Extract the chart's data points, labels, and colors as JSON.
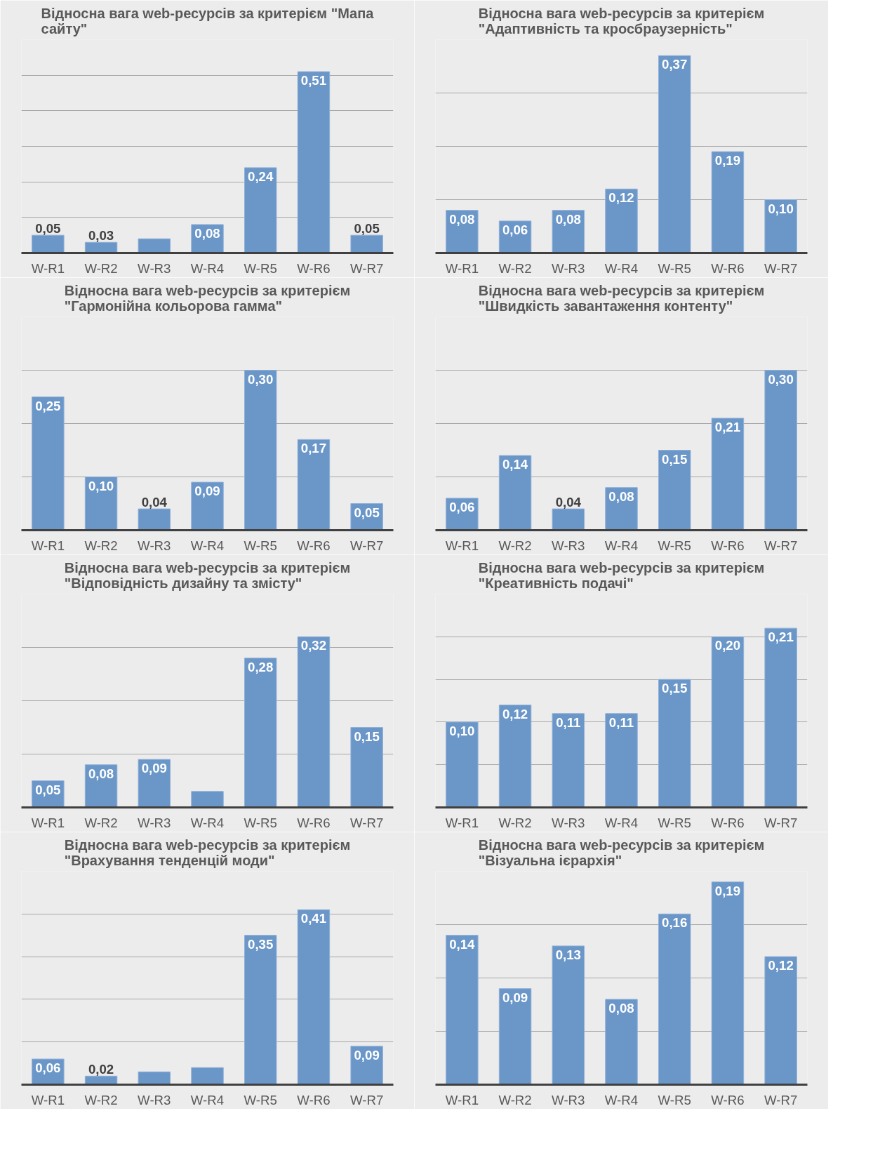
{
  "chart_data": [
    {
      "type": "bar",
      "title": "Відносна вага web-ресурсів за критерієм \"Мапа сайту\"",
      "categories": [
        "W-R1",
        "W-R2",
        "W-R3",
        "W-R4",
        "W-R5",
        "W-R6",
        "W-R7"
      ],
      "values": [
        0.05,
        0.03,
        0.04,
        0.08,
        0.24,
        0.51,
        0.05
      ],
      "value_labels": [
        "0,05",
        "0,03",
        null,
        "0,08",
        "0,24",
        "0,51",
        "0,05"
      ],
      "color": "#6a96c8",
      "ylim": [
        0,
        0.6
      ],
      "yticks": [
        {
          "value": 0.1,
          "label": null
        },
        {
          "value": 0.2,
          "label": null
        },
        {
          "value": 0.3,
          "label": null
        },
        {
          "value": 0.4,
          "label": null
        },
        {
          "value": 0.5,
          "label": null
        },
        {
          "value": 0.6,
          "label": null
        }
      ],
      "grid": "y",
      "tick_labels": "x"
    },
    {
      "type": "bar",
      "title": "Відносна вага web-ресурсів за критерієм \"Адаптивність та кросбраузерність\"",
      "categories": [
        "W-R1",
        "W-R2",
        "W-R3",
        "W-R4",
        "W-R5",
        "W-R6",
        "W-R7"
      ],
      "values": [
        0.08,
        0.06,
        0.08,
        0.12,
        0.37,
        0.19,
        0.1
      ],
      "value_labels": [
        "0,08",
        "0,06",
        "0,08",
        "0,12",
        "0,37",
        "0,19",
        "0,10"
      ],
      "color": "#6a96c8",
      "ylim": [
        0,
        0.4
      ],
      "yticks": [
        {
          "value": 0.1,
          "label": null
        },
        {
          "value": 0.2,
          "label": null
        },
        {
          "value": 0.3,
          "label": null
        },
        {
          "value": 0.4,
          "label": null
        }
      ],
      "grid": "y",
      "tick_labels": "x"
    },
    {
      "type": "bar",
      "title": "Відносна вага web-ресурсів за критерієм \"Гармонійна кольорова гамма\"",
      "categories": [
        "W-R1",
        "W-R2",
        "W-R3",
        "W-R4",
        "W-R5",
        "W-R6",
        "W-R7"
      ],
      "values": [
        0.25,
        0.1,
        0.04,
        0.09,
        0.3,
        0.17,
        0.05
      ],
      "value_labels": [
        "0,25",
        "0,10",
        "0,04",
        "0,09",
        "0,30",
        "0,17",
        "0,05"
      ],
      "color": "#6a96c8",
      "ylim": [
        0,
        0.4
      ],
      "yticks": [
        {
          "value": 0.1,
          "label": null
        },
        {
          "value": 0.2,
          "label": null
        },
        {
          "value": 0.3,
          "label": null
        },
        {
          "value": 0.4,
          "label": null
        }
      ],
      "grid": "y",
      "tick_labels": "x"
    },
    {
      "type": "bar",
      "title": "Відносна вага web-ресурсів за критерієм \"Швидкість завантаження контенту\"",
      "categories": [
        "W-R1",
        "W-R2",
        "W-R3",
        "W-R4",
        "W-R5",
        "W-R6",
        "W-R7"
      ],
      "values": [
        0.06,
        0.14,
        0.04,
        0.08,
        0.15,
        0.21,
        0.3
      ],
      "value_labels": [
        "0,06",
        "0,14",
        "0,04",
        "0,08",
        "0,15",
        "0,21",
        "0,30"
      ],
      "color": "#6a96c8",
      "ylim": [
        0,
        0.4
      ],
      "yticks": [
        {
          "value": 0.1,
          "label": null
        },
        {
          "value": 0.2,
          "label": null
        },
        {
          "value": 0.3,
          "label": null
        },
        {
          "value": 0.4,
          "label": null
        }
      ],
      "grid": "y",
      "tick_labels": "x"
    },
    {
      "type": "bar",
      "title": "Відносна вага web-ресурсів за критерієм \"Відповідність дизайну та змісту\"",
      "categories": [
        "W-R1",
        "W-R2",
        "W-R3",
        "W-R4",
        "W-R5",
        "W-R6",
        "W-R7"
      ],
      "values": [
        0.05,
        0.08,
        0.09,
        0.03,
        0.28,
        0.32,
        0.15
      ],
      "value_labels": [
        "0,05",
        "0,08",
        "0,09",
        null,
        "0,28",
        "0,32",
        "0,15"
      ],
      "color": "#6a96c8",
      "ylim": [
        0,
        0.4
      ],
      "yticks": [
        {
          "value": 0.1,
          "label": null
        },
        {
          "value": 0.2,
          "label": null
        },
        {
          "value": 0.3,
          "label": null
        },
        {
          "value": 0.4,
          "label": null
        }
      ],
      "grid": "y",
      "tick_labels": "x"
    },
    {
      "type": "bar",
      "title": "Відносна вага web-ресурсів за критерієм \"Креативність подачі\"",
      "categories": [
        "W-R1",
        "W-R2",
        "W-R3",
        "W-R4",
        "W-R5",
        "W-R6",
        "W-R7"
      ],
      "values": [
        0.1,
        0.12,
        0.11,
        0.11,
        0.15,
        0.2,
        0.21
      ],
      "value_labels": [
        "0,10",
        "0,12",
        "0,11",
        "0,11",
        "0,15",
        "0,20",
        "0,21"
      ],
      "color": "#6a96c8",
      "ylim": [
        0,
        0.25
      ],
      "yticks": [
        {
          "value": 0.05,
          "label": null
        },
        {
          "value": 0.1,
          "label": null
        },
        {
          "value": 0.15,
          "label": null
        },
        {
          "value": 0.2,
          "label": null
        },
        {
          "value": 0.25,
          "label": null
        }
      ],
      "grid": "y",
      "tick_labels": "x"
    },
    {
      "type": "bar",
      "title": "Відносна вага web-ресурсів за критерієм \"Врахування тенденцій моди\"",
      "categories": [
        "W-R1",
        "W-R2",
        "W-R3",
        "W-R4",
        "W-R5",
        "W-R6",
        "W-R7"
      ],
      "values": [
        0.06,
        0.02,
        0.03,
        0.04,
        0.35,
        0.41,
        0.09
      ],
      "value_labels": [
        "0,06",
        "0,02",
        null,
        null,
        "0,35",
        "0,41",
        "0,09"
      ],
      "color": "#6a96c8",
      "ylim": [
        0,
        0.5
      ],
      "yticks": [
        {
          "value": 0.1,
          "label": null
        },
        {
          "value": 0.2,
          "label": null
        },
        {
          "value": 0.3,
          "label": null
        },
        {
          "value": 0.4,
          "label": null
        },
        {
          "value": 0.5,
          "label": null
        }
      ],
      "grid": "y",
      "tick_labels": "x"
    },
    {
      "type": "bar",
      "title": "Відносна вага web-ресурсів за критерієм \"Візуальна ієрархія\"",
      "categories": [
        "W-R1",
        "W-R2",
        "W-R3",
        "W-R4",
        "W-R5",
        "W-R6",
        "W-R7"
      ],
      "values": [
        0.14,
        0.09,
        0.13,
        0.08,
        0.16,
        0.19,
        0.12
      ],
      "value_labels": [
        "0,14",
        "0,09",
        "0,13",
        "0,08",
        "0,16",
        "0,19",
        "0,12"
      ],
      "color": "#6a96c8",
      "ylim": [
        0,
        0.2
      ],
      "yticks": [
        {
          "value": 0.05,
          "label": null
        },
        {
          "value": 0.1,
          "label": null
        },
        {
          "value": 0.15,
          "label": null
        },
        {
          "value": 0.2,
          "label": null
        }
      ],
      "grid": "y",
      "tick_labels": "x"
    }
  ]
}
